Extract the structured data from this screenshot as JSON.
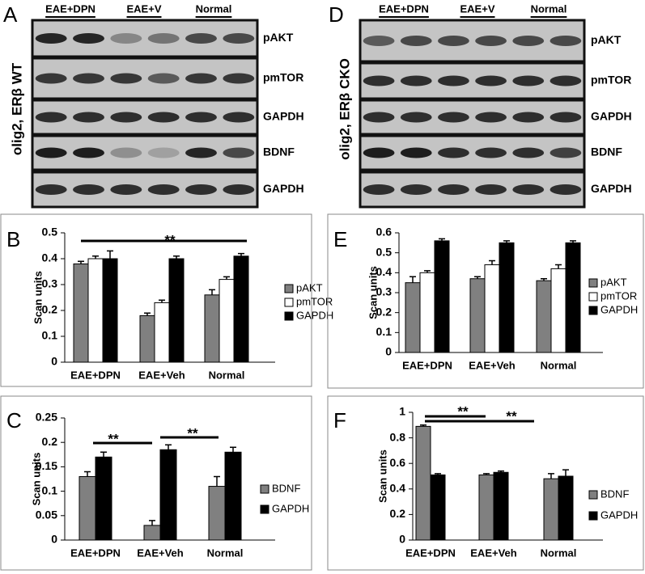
{
  "figure": {
    "blots": [
      {
        "panel": "A",
        "side_label": "olig2, ERβ WT",
        "groups": [
          "EAE+DPN",
          "EAE+V",
          "Normal"
        ],
        "rows": [
          "pAKT",
          "pmTOR",
          "GAPDH",
          "BDNF",
          "GAPDH"
        ]
      },
      {
        "panel": "D",
        "side_label": "olig2, ERβ CKO",
        "groups": [
          "EAE+DPN",
          "EAE+V",
          "Normal"
        ],
        "rows": [
          "pAKT",
          "pmTOR",
          "GAPDH",
          "BDNF",
          "GAPDH"
        ]
      }
    ]
  },
  "chart_data": [
    {
      "type": "bar",
      "panel": "B",
      "y_label": "Scan units",
      "categories": [
        "EAE+DPN",
        "EAE+Veh",
        "Normal"
      ],
      "ylim": [
        0,
        0.5
      ],
      "yticks": [
        0,
        0.1,
        0.2,
        0.3,
        0.4,
        0.5
      ],
      "series": [
        {
          "name": "pAKT",
          "color": "#808080",
          "values": [
            0.38,
            0.18,
            0.26
          ],
          "errors": [
            0.01,
            0.01,
            0.02
          ]
        },
        {
          "name": "pmTOR",
          "color": "#ffffff",
          "values": [
            0.4,
            0.23,
            0.32
          ],
          "errors": [
            0.01,
            0.01,
            0.01
          ]
        },
        {
          "name": "GAPDH",
          "color": "#000000",
          "values": [
            0.4,
            0.4,
            0.41
          ],
          "errors": [
            0.03,
            0.01,
            0.01
          ]
        }
      ],
      "annotations": [
        "**"
      ]
    },
    {
      "type": "bar",
      "panel": "C",
      "y_label": "Scan units",
      "categories": [
        "EAE+DPN",
        "EAE+Veh",
        "Normal"
      ],
      "ylim": [
        0,
        0.25
      ],
      "yticks": [
        0,
        0.05,
        0.1,
        0.15,
        0.2,
        0.25
      ],
      "series": [
        {
          "name": "BDNF",
          "color": "#808080",
          "values": [
            0.13,
            0.03,
            0.11
          ],
          "errors": [
            0.01,
            0.01,
            0.02
          ]
        },
        {
          "name": "GAPDH",
          "color": "#000000",
          "values": [
            0.17,
            0.185,
            0.18
          ],
          "errors": [
            0.01,
            0.01,
            0.01
          ]
        }
      ],
      "annotations": [
        "**",
        "**"
      ]
    },
    {
      "type": "bar",
      "panel": "E",
      "y_label": "Scan units",
      "categories": [
        "EAE+DPN",
        "EAE+Veh",
        "Normal"
      ],
      "ylim": [
        0,
        0.6
      ],
      "yticks": [
        0,
        0.1,
        0.2,
        0.3,
        0.4,
        0.5,
        0.6
      ],
      "series": [
        {
          "name": "pAKT",
          "color": "#808080",
          "values": [
            0.35,
            0.37,
            0.36
          ],
          "errors": [
            0.03,
            0.01,
            0.01
          ]
        },
        {
          "name": "pmTOR",
          "color": "#ffffff",
          "values": [
            0.4,
            0.44,
            0.42
          ],
          "errors": [
            0.01,
            0.02,
            0.02
          ]
        },
        {
          "name": "GAPDH",
          "color": "#000000",
          "values": [
            0.56,
            0.55,
            0.55
          ],
          "errors": [
            0.01,
            0.01,
            0.01
          ]
        }
      ],
      "annotations": []
    },
    {
      "type": "bar",
      "panel": "F",
      "y_label": "Scan units",
      "categories": [
        "EAE+DPN",
        "EAE+Veh",
        "Normal"
      ],
      "ylim": [
        0,
        1
      ],
      "yticks": [
        0,
        0.2,
        0.4,
        0.6,
        0.8,
        1
      ],
      "series": [
        {
          "name": "BDNF",
          "color": "#808080",
          "values": [
            0.89,
            0.51,
            0.48
          ],
          "errors": [
            0.01,
            0.01,
            0.04
          ]
        },
        {
          "name": "GAPDH",
          "color": "#000000",
          "values": [
            0.51,
            0.53,
            0.5
          ],
          "errors": [
            0.01,
            0.01,
            0.05
          ]
        }
      ],
      "annotations": [
        "**",
        "**"
      ]
    }
  ]
}
